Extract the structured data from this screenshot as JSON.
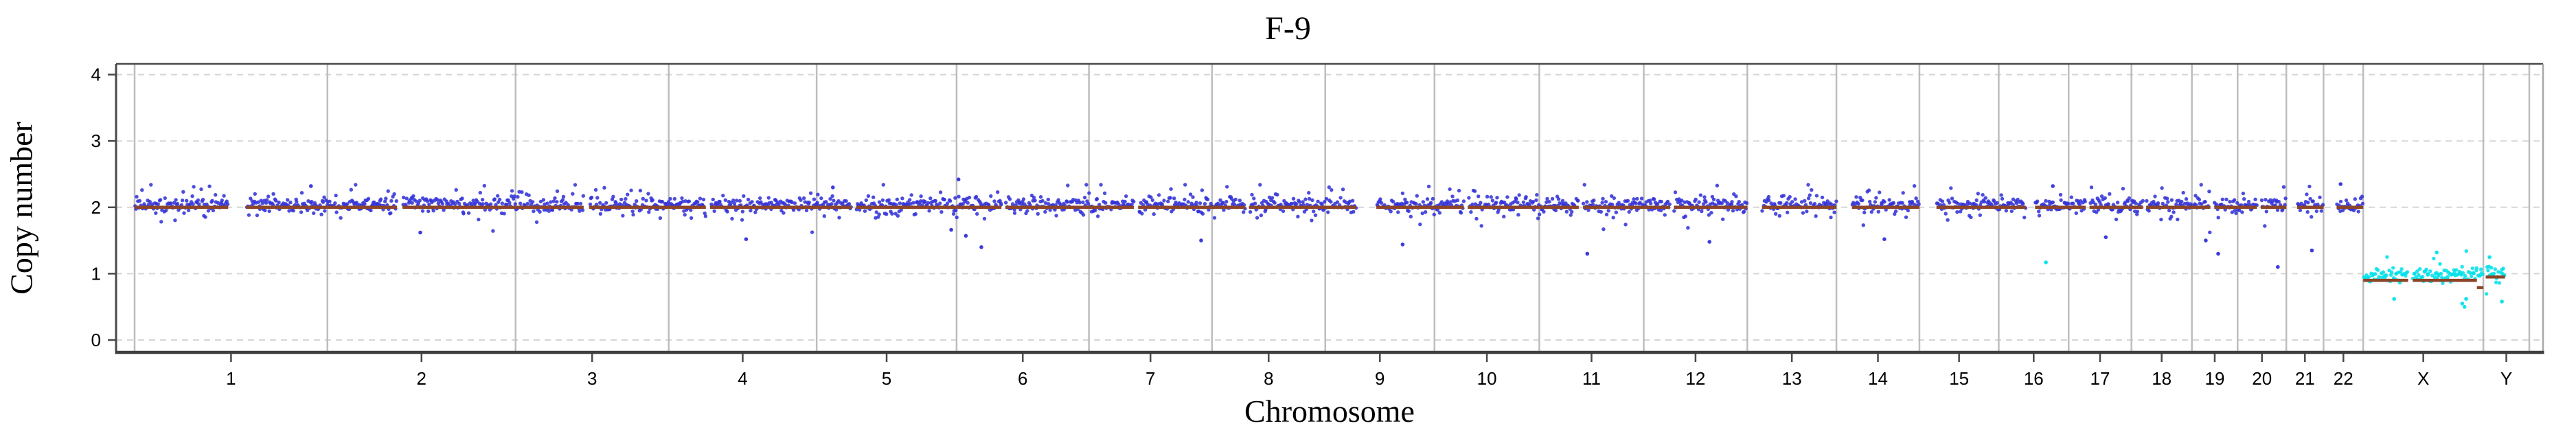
{
  "chart_data": {
    "type": "scatter",
    "title": "F-9",
    "xlabel": "Chromosome",
    "ylabel": "Copy number",
    "ylim": [
      0,
      4
    ],
    "y_ticks": [
      0,
      1,
      2,
      3,
      4
    ],
    "grid": "dashed horizontal at each y tick",
    "legend": "none",
    "segment_cn_default": 2.0,
    "points_per_mb": 0.8,
    "colors": {
      "autosome_points": "#3232D8",
      "sex_points": "#00E1EC",
      "segment": "#8C4528",
      "chrom_boundary": "#BDBDBD",
      "gridline": "#D6D6D6",
      "axis": "#4A4A4A",
      "axis_right": "#A8A8A8",
      "text": "#000000",
      "background": "#FFFFFF"
    },
    "chromosomes": [
      {
        "name": "1",
        "len": 249.3,
        "group": "autosome",
        "mean_cn": 2.04,
        "gaps": [
          [
            121,
            144
          ]
        ]
      },
      {
        "name": "2",
        "len": 243.2,
        "group": "autosome",
        "mean_cn": 2.04,
        "gaps": [
          [
            90,
            97
          ]
        ]
      },
      {
        "name": "3",
        "len": 198.0,
        "group": "autosome",
        "mean_cn": 2.04,
        "gaps": [
          [
            88,
            95
          ]
        ]
      },
      {
        "name": "4",
        "len": 191.2,
        "group": "autosome",
        "mean_cn": 2.04,
        "gaps": [
          [
            48,
            53.5
          ]
        ]
      },
      {
        "name": "5",
        "len": 180.9,
        "group": "autosome",
        "mean_cn": 2.04,
        "gaps": [
          [
            45,
            51
          ]
        ]
      },
      {
        "name": "6",
        "len": 171.1,
        "group": "autosome",
        "mean_cn": 2.04,
        "gaps": [
          [
            58,
            63
          ]
        ]
      },
      {
        "name": "7",
        "len": 159.1,
        "group": "autosome",
        "mean_cn": 2.04,
        "gaps": [
          [
            58,
            63.5
          ]
        ]
      },
      {
        "name": "8",
        "len": 146.4,
        "group": "autosome",
        "mean_cn": 2.04,
        "gaps": [
          [
            43,
            48
          ]
        ]
      },
      {
        "name": "9",
        "len": 141.2,
        "group": "autosome",
        "mean_cn": 2.04,
        "gaps": [
          [
            40,
            66
          ]
        ]
      },
      {
        "name": "10",
        "len": 135.5,
        "group": "autosome",
        "mean_cn": 2.04,
        "gaps": [
          [
            38,
            43
          ]
        ]
      },
      {
        "name": "11",
        "len": 135.0,
        "group": "autosome",
        "mean_cn": 2.04,
        "gaps": [
          [
            51,
            56.5
          ]
        ]
      },
      {
        "name": "12",
        "len": 133.9,
        "group": "autosome",
        "mean_cn": 2.04,
        "gaps": [
          [
            34,
            39
          ]
        ]
      },
      {
        "name": "13",
        "len": 115.2,
        "group": "autosome",
        "mean_cn": 2.04,
        "cover": [
          [
            19,
            115.2
          ]
        ]
      },
      {
        "name": "14",
        "len": 107.3,
        "group": "autosome",
        "mean_cn": 2.04,
        "cover": [
          [
            20,
            107.3
          ]
        ]
      },
      {
        "name": "15",
        "len": 102.5,
        "group": "autosome",
        "mean_cn": 2.04,
        "cover": [
          [
            22,
            102.5
          ]
        ]
      },
      {
        "name": "16",
        "len": 90.4,
        "group": "autosome",
        "mean_cn": 2.04,
        "gaps": [
          [
            35,
            47
          ]
        ]
      },
      {
        "name": "17",
        "len": 81.2,
        "group": "autosome",
        "mean_cn": 2.04,
        "gaps": [
          [
            22,
            27
          ]
        ]
      },
      {
        "name": "18",
        "len": 78.1,
        "group": "autosome",
        "mean_cn": 2.04,
        "gaps": [
          [
            15,
            19
          ]
        ]
      },
      {
        "name": "19",
        "len": 59.1,
        "group": "autosome",
        "mean_cn": 2.04,
        "gaps": [
          [
            24,
            29
          ]
        ]
      },
      {
        "name": "20",
        "len": 63.0,
        "group": "autosome",
        "mean_cn": 2.04,
        "gaps": [
          [
            25,
            30
          ]
        ]
      },
      {
        "name": "21",
        "len": 48.1,
        "group": "autosome",
        "mean_cn": 2.04,
        "cover": [
          [
            14,
            48.1
          ]
        ]
      },
      {
        "name": "22",
        "len": 51.3,
        "group": "autosome",
        "mean_cn": 2.04,
        "cover": [
          [
            17,
            51.3
          ]
        ]
      },
      {
        "name": "X",
        "len": 155.3,
        "group": "sex",
        "mean_cn": 0.99,
        "gaps": [
          [
            58,
            64
          ]
        ],
        "segs": [
          {
            "s": 0,
            "e": 58,
            "cn": 0.9
          },
          {
            "s": 64,
            "e": 147,
            "cn": 0.9
          },
          {
            "s": 147,
            "e": 155.3,
            "cn": 0.79
          }
        ]
      },
      {
        "name": "Y",
        "len": 59.4,
        "group": "sex",
        "mean_cn": 0.97,
        "cover": [
          [
            3,
            28
          ]
        ],
        "segs": [
          {
            "s": 3,
            "e": 28,
            "cn": 0.95
          }
        ]
      }
    ],
    "outliers": [
      {
        "chrom": "1",
        "mb": 228,
        "cn": 2.32
      },
      {
        "chrom": "2",
        "mb": 120,
        "cn": 1.62
      },
      {
        "chrom": "4",
        "mb": 100,
        "cn": 1.52
      },
      {
        "chrom": "5",
        "mb": 21,
        "cn": 2.3
      },
      {
        "chrom": "5",
        "mb": 174,
        "cn": 1.66
      },
      {
        "chrom": "6",
        "mb": 2.5,
        "cn": 2.42
      },
      {
        "chrom": "6",
        "mb": 12,
        "cn": 1.57
      },
      {
        "chrom": "6",
        "mb": 32,
        "cn": 1.4
      },
      {
        "chrom": "7",
        "mb": 145,
        "cn": 1.5
      },
      {
        "chrom": "9",
        "mb": 100,
        "cn": 1.44
      },
      {
        "chrom": "11",
        "mb": 62,
        "cn": 1.3
      },
      {
        "chrom": "12",
        "mb": 85,
        "cn": 1.48
      },
      {
        "chrom": "14",
        "mb": 62,
        "cn": 1.52
      },
      {
        "chrom": "16",
        "mb": 61,
        "cn": 1.17,
        "group": "sex"
      },
      {
        "chrom": "16",
        "mb": 70,
        "cn": 2.32
      },
      {
        "chrom": "17",
        "mb": 48,
        "cn": 1.55
      },
      {
        "chrom": "19",
        "mb": 18,
        "cn": 1.5
      },
      {
        "chrom": "19",
        "mb": 34,
        "cn": 1.3
      },
      {
        "chrom": "20",
        "mb": 52,
        "cn": 1.1
      },
      {
        "chrom": "21",
        "mb": 33,
        "cn": 1.35
      },
      {
        "chrom": "22",
        "mb": 22,
        "cn": 2.35
      },
      {
        "chrom": "X",
        "mb": 40,
        "cn": 0.62
      },
      {
        "chrom": "X",
        "mb": 95,
        "cn": 1.32
      },
      {
        "chrom": "X",
        "mb": 128,
        "cn": 0.55
      },
      {
        "chrom": "X",
        "mb": 131,
        "cn": 0.5
      },
      {
        "chrom": "X",
        "mb": 133,
        "cn": 0.62
      },
      {
        "chrom": "Y",
        "mb": 8,
        "cn": 1.25
      },
      {
        "chrom": "Y",
        "mb": 24,
        "cn": 0.58
      }
    ]
  }
}
